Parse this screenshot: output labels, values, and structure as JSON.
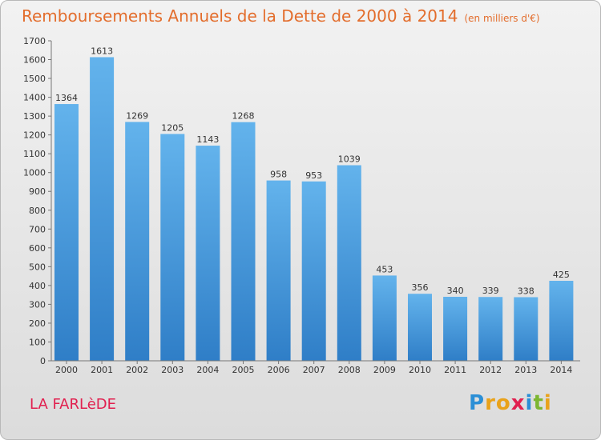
{
  "title": "Remboursements Annuels de la Dette de 2000 à 2014",
  "unit_note": "(en milliers d'€)",
  "commune": "LA FARLèDE",
  "logo": {
    "text": "Proxiti",
    "letters": [
      {
        "char": "P",
        "color": "#2b8fd6"
      },
      {
        "char": "r",
        "color": "#e9a21a"
      },
      {
        "char": "o",
        "color": "#e9a21a"
      },
      {
        "char": "x",
        "color": "#e1204f"
      },
      {
        "char": "i",
        "color": "#2b8fd6"
      },
      {
        "char": "t",
        "color": "#7cb631"
      },
      {
        "char": "i",
        "color": "#e9a21a"
      }
    ]
  },
  "colors": {
    "title": "#e36d2c",
    "bar_top": "#63b3ec",
    "bar_bottom": "#2f7ec7",
    "commune": "#e1204f"
  },
  "chart_data": {
    "type": "bar",
    "title": "Remboursements Annuels de la Dette de 2000 à 2014",
    "categories": [
      "2000",
      "2001",
      "2002",
      "2003",
      "2004",
      "2005",
      "2006",
      "2007",
      "2008",
      "2009",
      "2010",
      "2011",
      "2012",
      "2013",
      "2014"
    ],
    "values": [
      1364,
      1613,
      1269,
      1205,
      1143,
      1268,
      958,
      953,
      1039,
      453,
      356,
      340,
      339,
      338,
      425
    ],
    "ylim": [
      0,
      1700
    ],
    "yticks": [
      0,
      100,
      200,
      300,
      400,
      500,
      600,
      700,
      800,
      900,
      1000,
      1100,
      1200,
      1300,
      1400,
      1500,
      1600,
      1700
    ],
    "grid": false,
    "data_labels": true
  }
}
